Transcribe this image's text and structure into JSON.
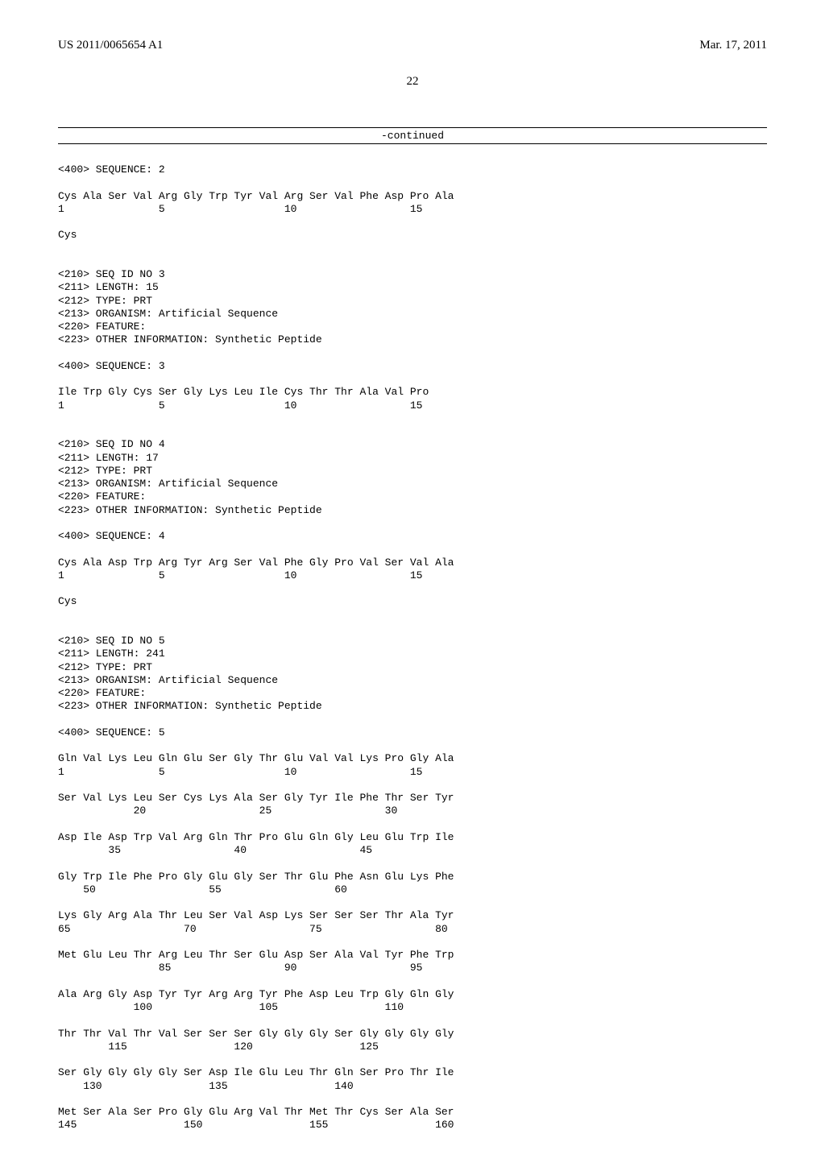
{
  "header": {
    "pub_number": "US 2011/0065654 A1",
    "pub_date": "Mar. 17, 2011"
  },
  "page_number": "22",
  "continued_label": "-continued",
  "sequence_listing_text": "<400> SEQUENCE: 2\n\nCys Ala Ser Val Arg Gly Trp Tyr Val Arg Ser Val Phe Asp Pro Ala\n1               5                   10                  15\n\nCys\n\n\n<210> SEQ ID NO 3\n<211> LENGTH: 15\n<212> TYPE: PRT\n<213> ORGANISM: Artificial Sequence\n<220> FEATURE:\n<223> OTHER INFORMATION: Synthetic Peptide\n\n<400> SEQUENCE: 3\n\nIle Trp Gly Cys Ser Gly Lys Leu Ile Cys Thr Thr Ala Val Pro\n1               5                   10                  15\n\n\n<210> SEQ ID NO 4\n<211> LENGTH: 17\n<212> TYPE: PRT\n<213> ORGANISM: Artificial Sequence\n<220> FEATURE:\n<223> OTHER INFORMATION: Synthetic Peptide\n\n<400> SEQUENCE: 4\n\nCys Ala Asp Trp Arg Tyr Arg Ser Val Phe Gly Pro Val Ser Val Ala\n1               5                   10                  15\n\nCys\n\n\n<210> SEQ ID NO 5\n<211> LENGTH: 241\n<212> TYPE: PRT\n<213> ORGANISM: Artificial Sequence\n<220> FEATURE:\n<223> OTHER INFORMATION: Synthetic Peptide\n\n<400> SEQUENCE: 5\n\nGln Val Lys Leu Gln Glu Ser Gly Thr Glu Val Val Lys Pro Gly Ala\n1               5                   10                  15\n\nSer Val Lys Leu Ser Cys Lys Ala Ser Gly Tyr Ile Phe Thr Ser Tyr\n            20                  25                  30\n\nAsp Ile Asp Trp Val Arg Gln Thr Pro Glu Gln Gly Leu Glu Trp Ile\n        35                  40                  45\n\nGly Trp Ile Phe Pro Gly Glu Gly Ser Thr Glu Phe Asn Glu Lys Phe\n    50                  55                  60\n\nLys Gly Arg Ala Thr Leu Ser Val Asp Lys Ser Ser Ser Thr Ala Tyr\n65                  70                  75                  80\n\nMet Glu Leu Thr Arg Leu Thr Ser Glu Asp Ser Ala Val Tyr Phe Trp\n                85                  90                  95\n\nAla Arg Gly Asp Tyr Tyr Arg Arg Tyr Phe Asp Leu Trp Gly Gln Gly\n            100                 105                 110\n\nThr Thr Val Thr Val Ser Ser Ser Gly Gly Gly Ser Gly Gly Gly Gly\n        115                 120                 125\n\nSer Gly Gly Gly Gly Ser Asp Ile Glu Leu Thr Gln Ser Pro Thr Ile\n    130                 135                 140\n\nMet Ser Ala Ser Pro Gly Glu Arg Val Thr Met Thr Cys Ser Ala Ser\n145                 150                 155                 160"
}
